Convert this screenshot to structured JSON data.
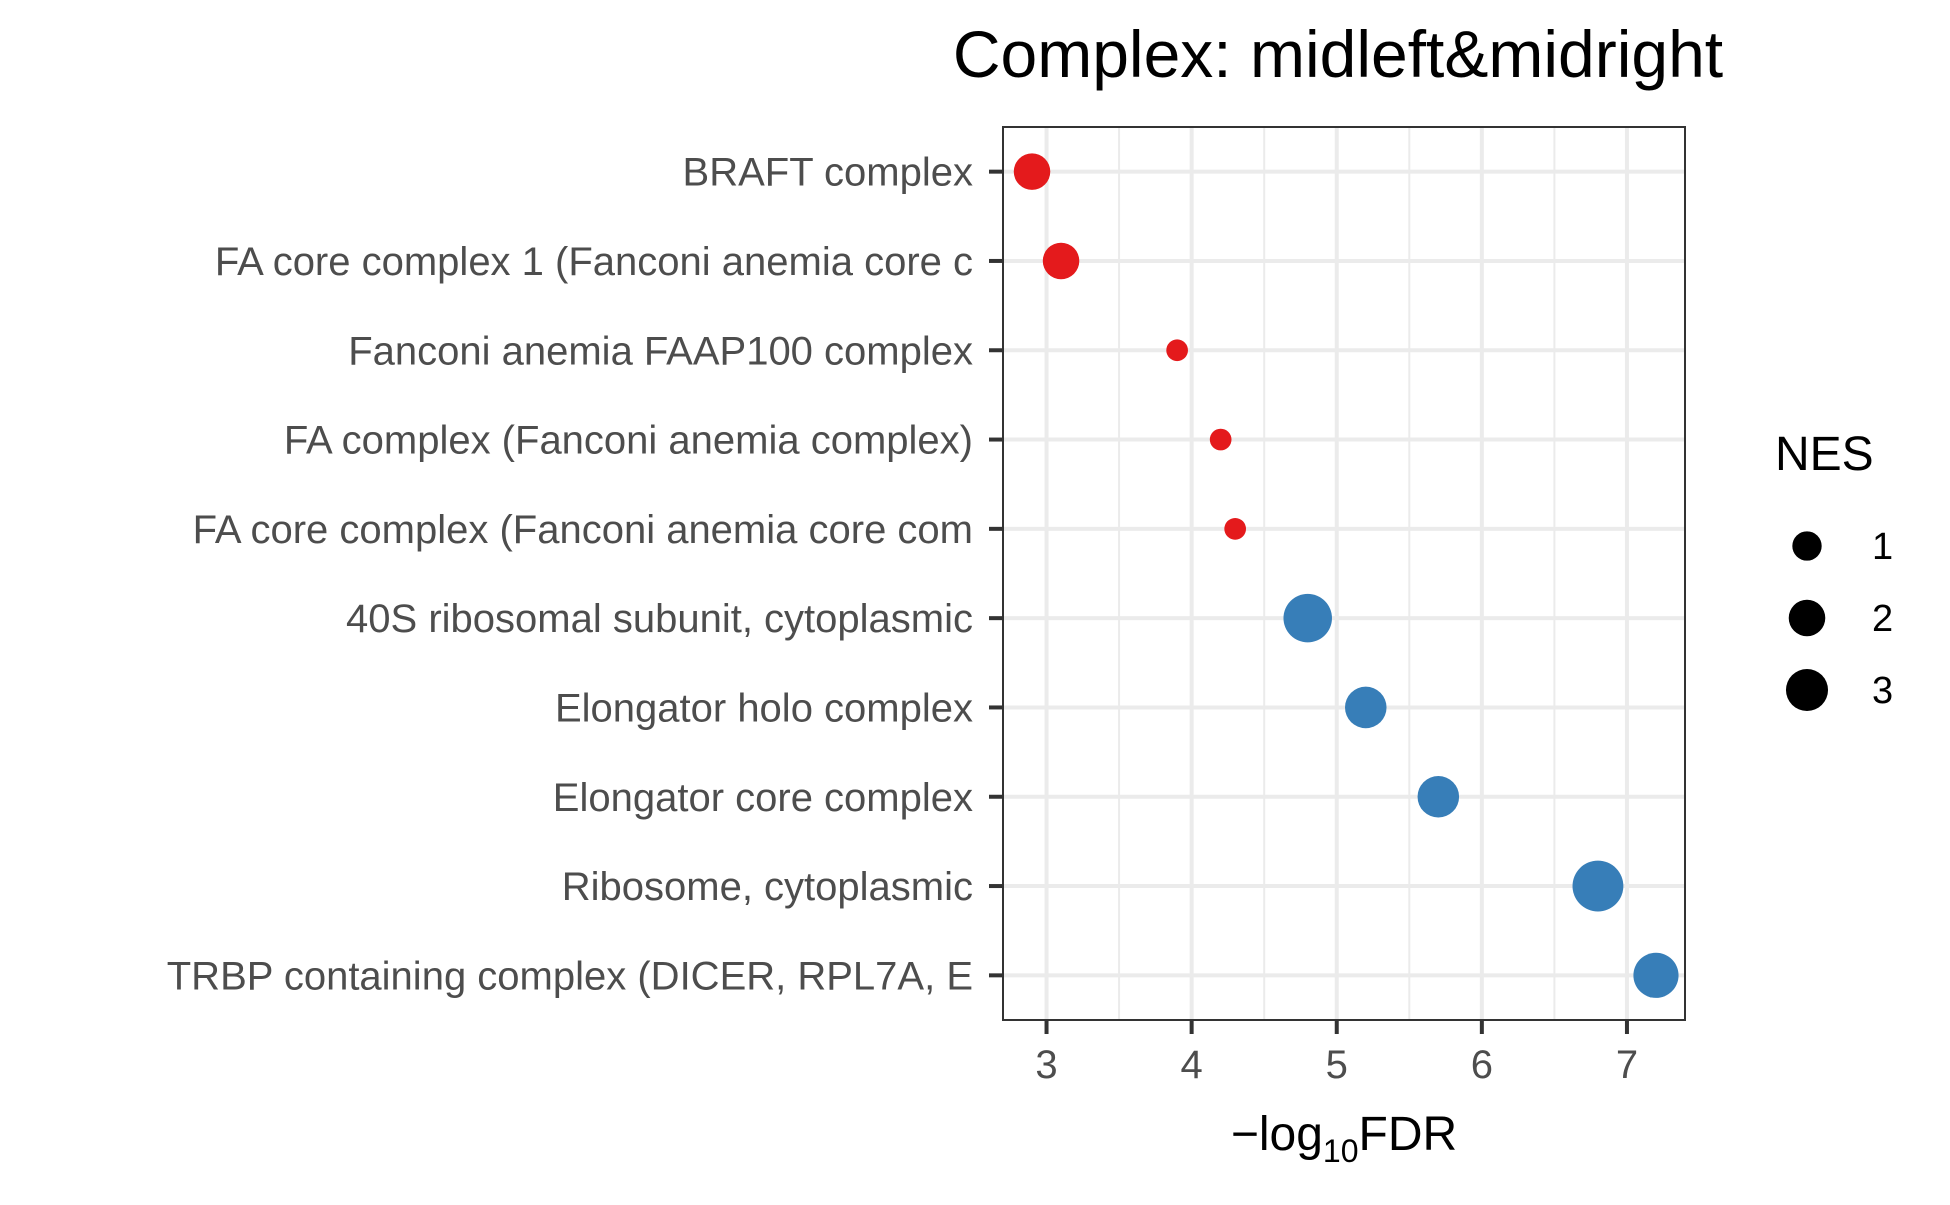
{
  "chart_data": {
    "type": "scatter",
    "title": "Complex: midleft&midright",
    "xlabel": {
      "prefix": "−log",
      "subscript": "10",
      "suffix": "FDR"
    },
    "ylabel": "",
    "xlim": [
      2.7,
      7.4
    ],
    "x_ticks": [
      3,
      4,
      5,
      6,
      7
    ],
    "x_tick_labels": [
      "3",
      "4",
      "5",
      "6",
      "7"
    ],
    "grid": true,
    "legend": {
      "title": "NES",
      "position": "right",
      "entries": [
        {
          "label": "1",
          "value": 1
        },
        {
          "label": "2",
          "value": 2
        },
        {
          "label": "3",
          "value": 3
        }
      ]
    },
    "colors": {
      "positive": "#e41a1c",
      "negative": "#377eb8"
    },
    "categories": [
      "BRAFT complex",
      "FA core complex 1 (Fanconi anemia core c",
      "Fanconi anemia FAAP100 complex",
      "FA complex (Fanconi anemia complex)",
      "FA core complex (Fanconi anemia core com",
      "40S ribosomal subunit, cytoplasmic",
      "Elongator holo complex",
      "Elongator core complex",
      "Ribosome, cytoplasmic",
      "TRBP containing complex (DICER, RPL7A, E"
    ],
    "points": [
      {
        "category": "BRAFT complex",
        "x": 2.9,
        "nes": 1.7,
        "color": "#e41a1c"
      },
      {
        "category": "FA core complex 1 (Fanconi anemia core c",
        "x": 3.1,
        "nes": 1.7,
        "color": "#e41a1c"
      },
      {
        "category": "Fanconi anemia FAAP100 complex",
        "x": 3.9,
        "nes": 0.6,
        "color": "#e41a1c"
      },
      {
        "category": "FA complex (Fanconi anemia complex)",
        "x": 4.2,
        "nes": 0.6,
        "color": "#e41a1c"
      },
      {
        "category": "FA core complex (Fanconi anemia core com",
        "x": 4.3,
        "nes": 0.6,
        "color": "#e41a1c"
      },
      {
        "category": "40S ribosomal subunit, cytoplasmic",
        "x": 4.8,
        "nes": 3.0,
        "color": "#377eb8"
      },
      {
        "category": "Elongator holo complex",
        "x": 5.2,
        "nes": 2.2,
        "color": "#377eb8"
      },
      {
        "category": "Elongator core complex",
        "x": 5.7,
        "nes": 2.2,
        "color": "#377eb8"
      },
      {
        "category": "Ribosome, cytoplasmic",
        "x": 6.8,
        "nes": 3.3,
        "color": "#377eb8"
      },
      {
        "category": "TRBP containing complex (DICER, RPL7A, E",
        "x": 7.2,
        "nes": 2.6,
        "color": "#377eb8"
      }
    ]
  }
}
